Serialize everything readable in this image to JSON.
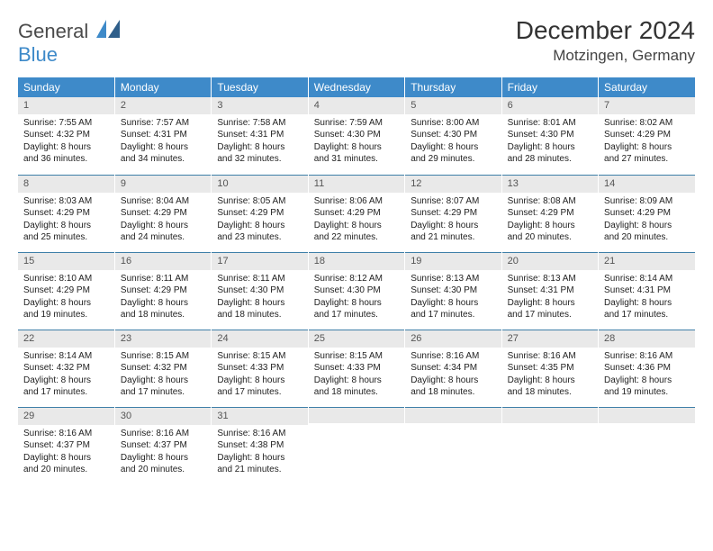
{
  "logo": {
    "top": "General",
    "bottom": "Blue"
  },
  "title": "December 2024",
  "location": "Motzingen, Germany",
  "colors": {
    "header_bg": "#3e8ac9",
    "header_text": "#ffffff",
    "daynum_bg": "#e9e9e9",
    "row_border": "#3e7fa8",
    "text": "#222222",
    "logo_gray": "#4a4a4a",
    "logo_blue": "#3e8ac9"
  },
  "weekdays": [
    "Sunday",
    "Monday",
    "Tuesday",
    "Wednesday",
    "Thursday",
    "Friday",
    "Saturday"
  ],
  "weeks": [
    [
      {
        "n": "1",
        "sunrise": "Sunrise: 7:55 AM",
        "sunset": "Sunset: 4:32 PM",
        "d1": "Daylight: 8 hours",
        "d2": "and 36 minutes."
      },
      {
        "n": "2",
        "sunrise": "Sunrise: 7:57 AM",
        "sunset": "Sunset: 4:31 PM",
        "d1": "Daylight: 8 hours",
        "d2": "and 34 minutes."
      },
      {
        "n": "3",
        "sunrise": "Sunrise: 7:58 AM",
        "sunset": "Sunset: 4:31 PM",
        "d1": "Daylight: 8 hours",
        "d2": "and 32 minutes."
      },
      {
        "n": "4",
        "sunrise": "Sunrise: 7:59 AM",
        "sunset": "Sunset: 4:30 PM",
        "d1": "Daylight: 8 hours",
        "d2": "and 31 minutes."
      },
      {
        "n": "5",
        "sunrise": "Sunrise: 8:00 AM",
        "sunset": "Sunset: 4:30 PM",
        "d1": "Daylight: 8 hours",
        "d2": "and 29 minutes."
      },
      {
        "n": "6",
        "sunrise": "Sunrise: 8:01 AM",
        "sunset": "Sunset: 4:30 PM",
        "d1": "Daylight: 8 hours",
        "d2": "and 28 minutes."
      },
      {
        "n": "7",
        "sunrise": "Sunrise: 8:02 AM",
        "sunset": "Sunset: 4:29 PM",
        "d1": "Daylight: 8 hours",
        "d2": "and 27 minutes."
      }
    ],
    [
      {
        "n": "8",
        "sunrise": "Sunrise: 8:03 AM",
        "sunset": "Sunset: 4:29 PM",
        "d1": "Daylight: 8 hours",
        "d2": "and 25 minutes."
      },
      {
        "n": "9",
        "sunrise": "Sunrise: 8:04 AM",
        "sunset": "Sunset: 4:29 PM",
        "d1": "Daylight: 8 hours",
        "d2": "and 24 minutes."
      },
      {
        "n": "10",
        "sunrise": "Sunrise: 8:05 AM",
        "sunset": "Sunset: 4:29 PM",
        "d1": "Daylight: 8 hours",
        "d2": "and 23 minutes."
      },
      {
        "n": "11",
        "sunrise": "Sunrise: 8:06 AM",
        "sunset": "Sunset: 4:29 PM",
        "d1": "Daylight: 8 hours",
        "d2": "and 22 minutes."
      },
      {
        "n": "12",
        "sunrise": "Sunrise: 8:07 AM",
        "sunset": "Sunset: 4:29 PM",
        "d1": "Daylight: 8 hours",
        "d2": "and 21 minutes."
      },
      {
        "n": "13",
        "sunrise": "Sunrise: 8:08 AM",
        "sunset": "Sunset: 4:29 PM",
        "d1": "Daylight: 8 hours",
        "d2": "and 20 minutes."
      },
      {
        "n": "14",
        "sunrise": "Sunrise: 8:09 AM",
        "sunset": "Sunset: 4:29 PM",
        "d1": "Daylight: 8 hours",
        "d2": "and 20 minutes."
      }
    ],
    [
      {
        "n": "15",
        "sunrise": "Sunrise: 8:10 AM",
        "sunset": "Sunset: 4:29 PM",
        "d1": "Daylight: 8 hours",
        "d2": "and 19 minutes."
      },
      {
        "n": "16",
        "sunrise": "Sunrise: 8:11 AM",
        "sunset": "Sunset: 4:29 PM",
        "d1": "Daylight: 8 hours",
        "d2": "and 18 minutes."
      },
      {
        "n": "17",
        "sunrise": "Sunrise: 8:11 AM",
        "sunset": "Sunset: 4:30 PM",
        "d1": "Daylight: 8 hours",
        "d2": "and 18 minutes."
      },
      {
        "n": "18",
        "sunrise": "Sunrise: 8:12 AM",
        "sunset": "Sunset: 4:30 PM",
        "d1": "Daylight: 8 hours",
        "d2": "and 17 minutes."
      },
      {
        "n": "19",
        "sunrise": "Sunrise: 8:13 AM",
        "sunset": "Sunset: 4:30 PM",
        "d1": "Daylight: 8 hours",
        "d2": "and 17 minutes."
      },
      {
        "n": "20",
        "sunrise": "Sunrise: 8:13 AM",
        "sunset": "Sunset: 4:31 PM",
        "d1": "Daylight: 8 hours",
        "d2": "and 17 minutes."
      },
      {
        "n": "21",
        "sunrise": "Sunrise: 8:14 AM",
        "sunset": "Sunset: 4:31 PM",
        "d1": "Daylight: 8 hours",
        "d2": "and 17 minutes."
      }
    ],
    [
      {
        "n": "22",
        "sunrise": "Sunrise: 8:14 AM",
        "sunset": "Sunset: 4:32 PM",
        "d1": "Daylight: 8 hours",
        "d2": "and 17 minutes."
      },
      {
        "n": "23",
        "sunrise": "Sunrise: 8:15 AM",
        "sunset": "Sunset: 4:32 PM",
        "d1": "Daylight: 8 hours",
        "d2": "and 17 minutes."
      },
      {
        "n": "24",
        "sunrise": "Sunrise: 8:15 AM",
        "sunset": "Sunset: 4:33 PM",
        "d1": "Daylight: 8 hours",
        "d2": "and 17 minutes."
      },
      {
        "n": "25",
        "sunrise": "Sunrise: 8:15 AM",
        "sunset": "Sunset: 4:33 PM",
        "d1": "Daylight: 8 hours",
        "d2": "and 18 minutes."
      },
      {
        "n": "26",
        "sunrise": "Sunrise: 8:16 AM",
        "sunset": "Sunset: 4:34 PM",
        "d1": "Daylight: 8 hours",
        "d2": "and 18 minutes."
      },
      {
        "n": "27",
        "sunrise": "Sunrise: 8:16 AM",
        "sunset": "Sunset: 4:35 PM",
        "d1": "Daylight: 8 hours",
        "d2": "and 18 minutes."
      },
      {
        "n": "28",
        "sunrise": "Sunrise: 8:16 AM",
        "sunset": "Sunset: 4:36 PM",
        "d1": "Daylight: 8 hours",
        "d2": "and 19 minutes."
      }
    ],
    [
      {
        "n": "29",
        "sunrise": "Sunrise: 8:16 AM",
        "sunset": "Sunset: 4:37 PM",
        "d1": "Daylight: 8 hours",
        "d2": "and 20 minutes."
      },
      {
        "n": "30",
        "sunrise": "Sunrise: 8:16 AM",
        "sunset": "Sunset: 4:37 PM",
        "d1": "Daylight: 8 hours",
        "d2": "and 20 minutes."
      },
      {
        "n": "31",
        "sunrise": "Sunrise: 8:16 AM",
        "sunset": "Sunset: 4:38 PM",
        "d1": "Daylight: 8 hours",
        "d2": "and 21 minutes."
      },
      {
        "n": "",
        "sunrise": "",
        "sunset": "",
        "d1": "",
        "d2": ""
      },
      {
        "n": "",
        "sunrise": "",
        "sunset": "",
        "d1": "",
        "d2": ""
      },
      {
        "n": "",
        "sunrise": "",
        "sunset": "",
        "d1": "",
        "d2": ""
      },
      {
        "n": "",
        "sunrise": "",
        "sunset": "",
        "d1": "",
        "d2": ""
      }
    ]
  ]
}
